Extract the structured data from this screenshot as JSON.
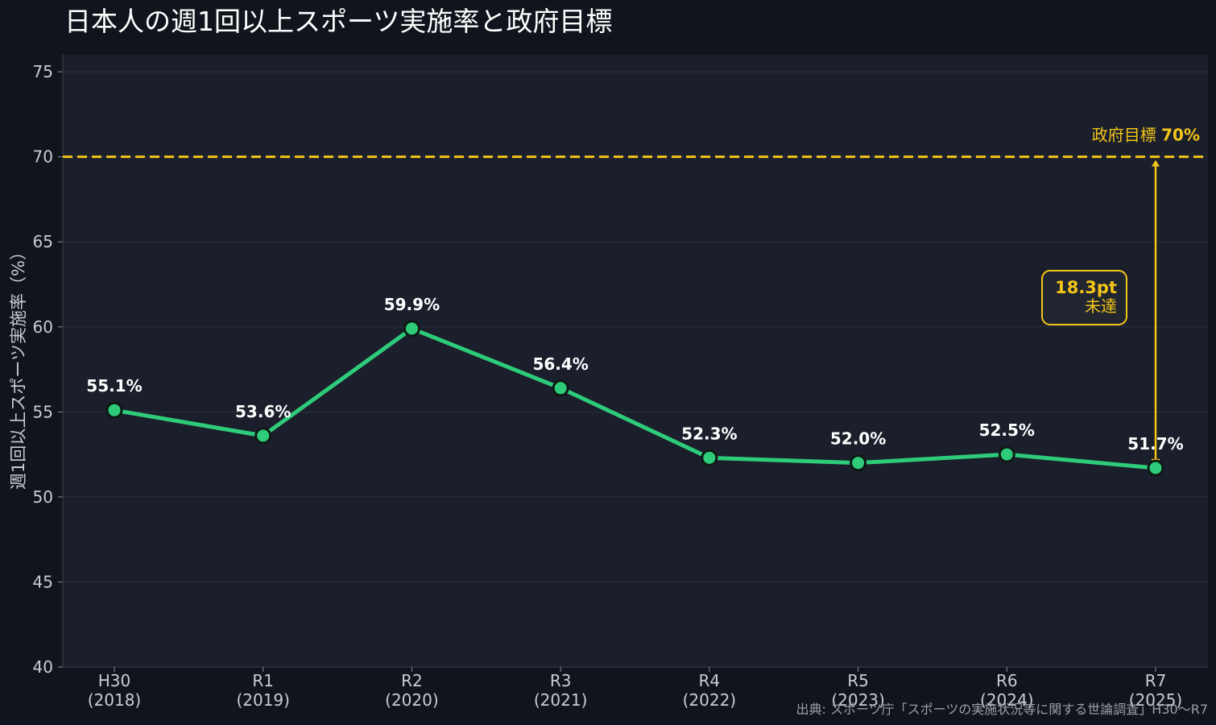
{
  "chart_data": {
    "type": "line",
    "title": "日本人の週1回以上スポーツ実施率と政府目標",
    "ylabel": "週1回以上スポーツ実施率（%）",
    "xlabel": "",
    "categories": [
      "H30",
      "R1",
      "R2",
      "R3",
      "R4",
      "R5",
      "R6",
      "R7"
    ],
    "category_years": [
      "(2018)",
      "(2019)",
      "(2020)",
      "(2021)",
      "(2022)",
      "(2023)",
      "(2024)",
      "(2025)"
    ],
    "series": [
      {
        "values": [
          55.1,
          53.6,
          59.9,
          56.4,
          52.3,
          52.0,
          52.5,
          51.7
        ],
        "labels": [
          "55.1%",
          "53.6%",
          "59.9%",
          "56.4%",
          "52.3%",
          "52.0%",
          "52.5%",
          "51.7%"
        ],
        "color": "#2ecc7a"
      }
    ],
    "ylim": [
      40,
      76
    ],
    "yticks": [
      40,
      45,
      50,
      55,
      60,
      65,
      70,
      75
    ],
    "grid": true,
    "target": {
      "value": 70,
      "label": "政府目標",
      "value_label": "70%",
      "color": "#f5c518"
    },
    "gap_annotation": {
      "value": "18.3pt",
      "note": "未達"
    },
    "source": "出典: スポーツ庁「スポーツの実施状況等に関する世論調査」H30〜R7"
  },
  "colors": {
    "background": "#10141c",
    "plot_area": "#1a1f2b",
    "grid": "#2a303c",
    "line": "#2ecc7a",
    "target": "#f5c518"
  }
}
